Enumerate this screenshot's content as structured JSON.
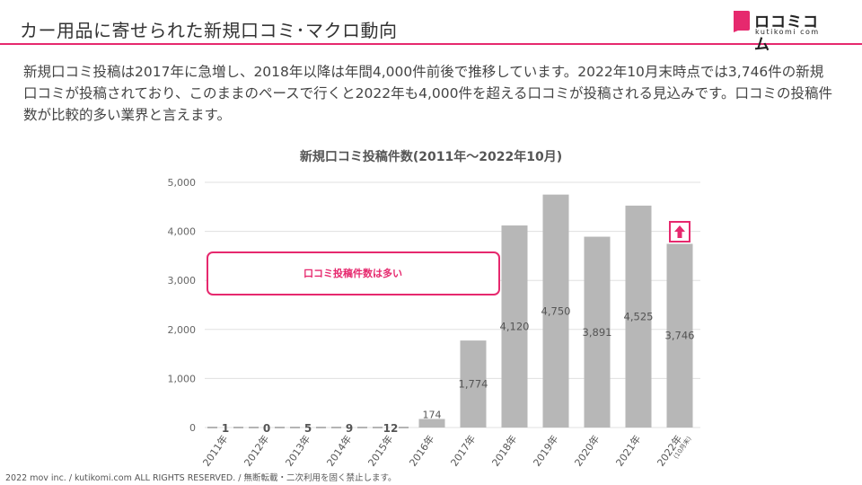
{
  "header": {
    "title": "カー用品に寄せられた新規口コミ･マクロ動向",
    "logo_text": "ロコミコム",
    "logo_sub": "kutikomi com",
    "accent_color": "#e6296e"
  },
  "body": {
    "text": "新規口コミ投稿は2017年に急増し、2018年以降は年間4,000件前後で推移しています。2022年10月末時点では3,746件の新規口コミが投稿されており、このままのペースで行くと2022年も4,000件を超える口コミが投稿される見込みです。口コミの投稿件数が比較的多い業界と言えます。"
  },
  "chart_data": {
    "type": "bar",
    "title": "新規口コミ投稿件数(2011年〜2022年10月)",
    "categories": [
      "2011年",
      "2012年",
      "2013年",
      "2014年",
      "2015年",
      "2016年",
      "2017年",
      "2018年",
      "2019年",
      "2020年",
      "2021年",
      "2022年"
    ],
    "category_note": {
      "2022年": "(10月末)"
    },
    "values": [
      1,
      0,
      5,
      9,
      12,
      174,
      1774,
      4120,
      4750,
      3891,
      4525,
      3746
    ],
    "data_labels": [
      "1",
      "0",
      "5",
      "9",
      "12",
      "174",
      "1,774",
      "4,120",
      "4,750",
      "3,891",
      "4,525",
      "3,746"
    ],
    "ylim": [
      0,
      5000
    ],
    "yticks": [
      0,
      1000,
      2000,
      3000,
      4000,
      5000
    ],
    "ytick_labels": [
      "0",
      "1,000",
      "2,000",
      "3,000",
      "4,000",
      "5,000"
    ],
    "grid": true,
    "bar_color": "#b7b7b7",
    "gridline_color": "#e0e0e0",
    "annotation": {
      "text": "口コミ投稿件数は多い",
      "color": "#e6296e"
    },
    "up_arrow_icon": "arrow-up-icon"
  },
  "footer": {
    "text": "2022 mov inc. / kutikomi.com ALL RIGHTS RESERVED. / 無断転載・二次利用を固く禁止します。"
  }
}
